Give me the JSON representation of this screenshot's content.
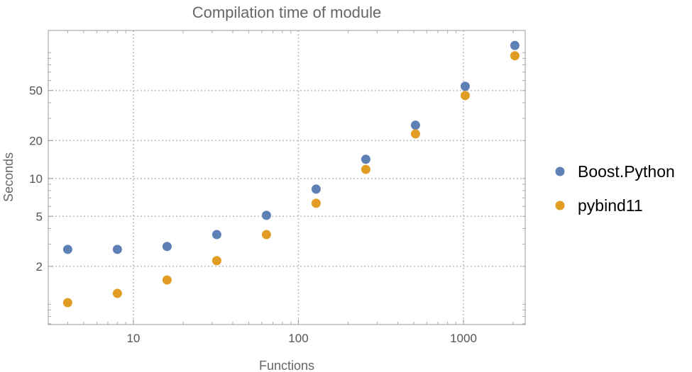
{
  "chart_data": {
    "type": "scatter",
    "title": "Compilation time of module",
    "xlabel": "Functions",
    "ylabel": "Seconds",
    "x_scale": "log",
    "y_scale": "log",
    "xlim": [
      3.05,
      2366
    ],
    "ylim": [
      0.69,
      150
    ],
    "grid": true,
    "legend_position": "right",
    "x_ticks": [
      10,
      100,
      1000
    ],
    "x_tick_labels": [
      "10",
      "100",
      "1000"
    ],
    "y_ticks": [
      2,
      5,
      10,
      20,
      50
    ],
    "y_tick_labels": [
      "2",
      "5",
      "10",
      "20",
      "50"
    ],
    "x": [
      4,
      8,
      16,
      32,
      64,
      128,
      256,
      512,
      1024,
      2048
    ],
    "series": [
      {
        "name": "Boost.Python",
        "color": "#5E81B5",
        "values": [
          2.73,
          2.73,
          2.88,
          3.58,
          5.09,
          8.23,
          14.2,
          26.5,
          54,
          114
        ]
      },
      {
        "name": "pybind11",
        "color": "#E19C24",
        "values": [
          1.03,
          1.22,
          1.56,
          2.22,
          3.58,
          6.35,
          11.8,
          22.6,
          45.6,
          94.4
        ]
      }
    ]
  }
}
